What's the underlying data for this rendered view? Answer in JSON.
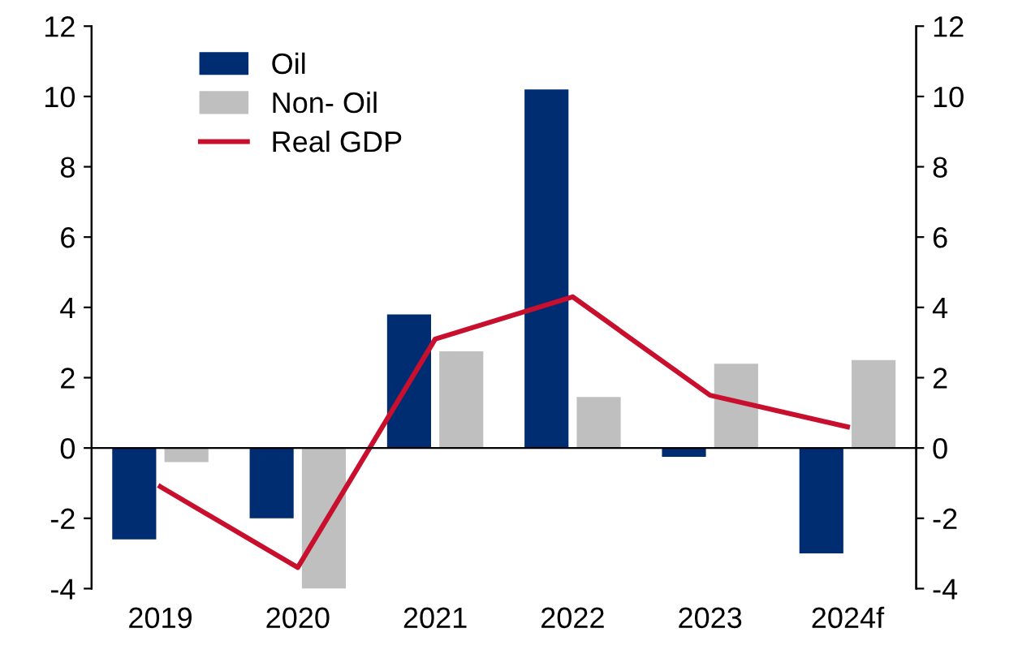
{
  "chart_data": {
    "type": "bar",
    "categories": [
      "2019",
      "2020",
      "2021",
      "2022",
      "2023",
      "2024f"
    ],
    "series": [
      {
        "name": "Oil",
        "color": "#002d72",
        "values": [
          -2.6,
          -2.0,
          3.8,
          10.2,
          -0.25,
          -3.0
        ]
      },
      {
        "name": "Non- Oil",
        "color": "#bfbfbf",
        "values": [
          -0.4,
          -4.0,
          2.75,
          1.45,
          2.4,
          2.5
        ]
      },
      {
        "name": "Real GDP",
        "type": "line",
        "color": "#c8102e",
        "values": [
          -1.1,
          -3.4,
          3.1,
          4.3,
          1.5,
          0.6
        ]
      }
    ],
    "ylim": [
      -4,
      12
    ],
    "yticks": [
      -4,
      -2,
      0,
      2,
      4,
      6,
      8,
      10,
      12
    ],
    "y2lim": [
      -4,
      12
    ],
    "y2ticks": [
      -4,
      -2,
      0,
      2,
      4,
      6,
      8,
      10,
      12
    ],
    "ref_lines": [
      {
        "axis": "y",
        "value": 0,
        "color": "#000000"
      }
    ],
    "legend": "top left",
    "marker": "none",
    "line_style": "solid"
  }
}
